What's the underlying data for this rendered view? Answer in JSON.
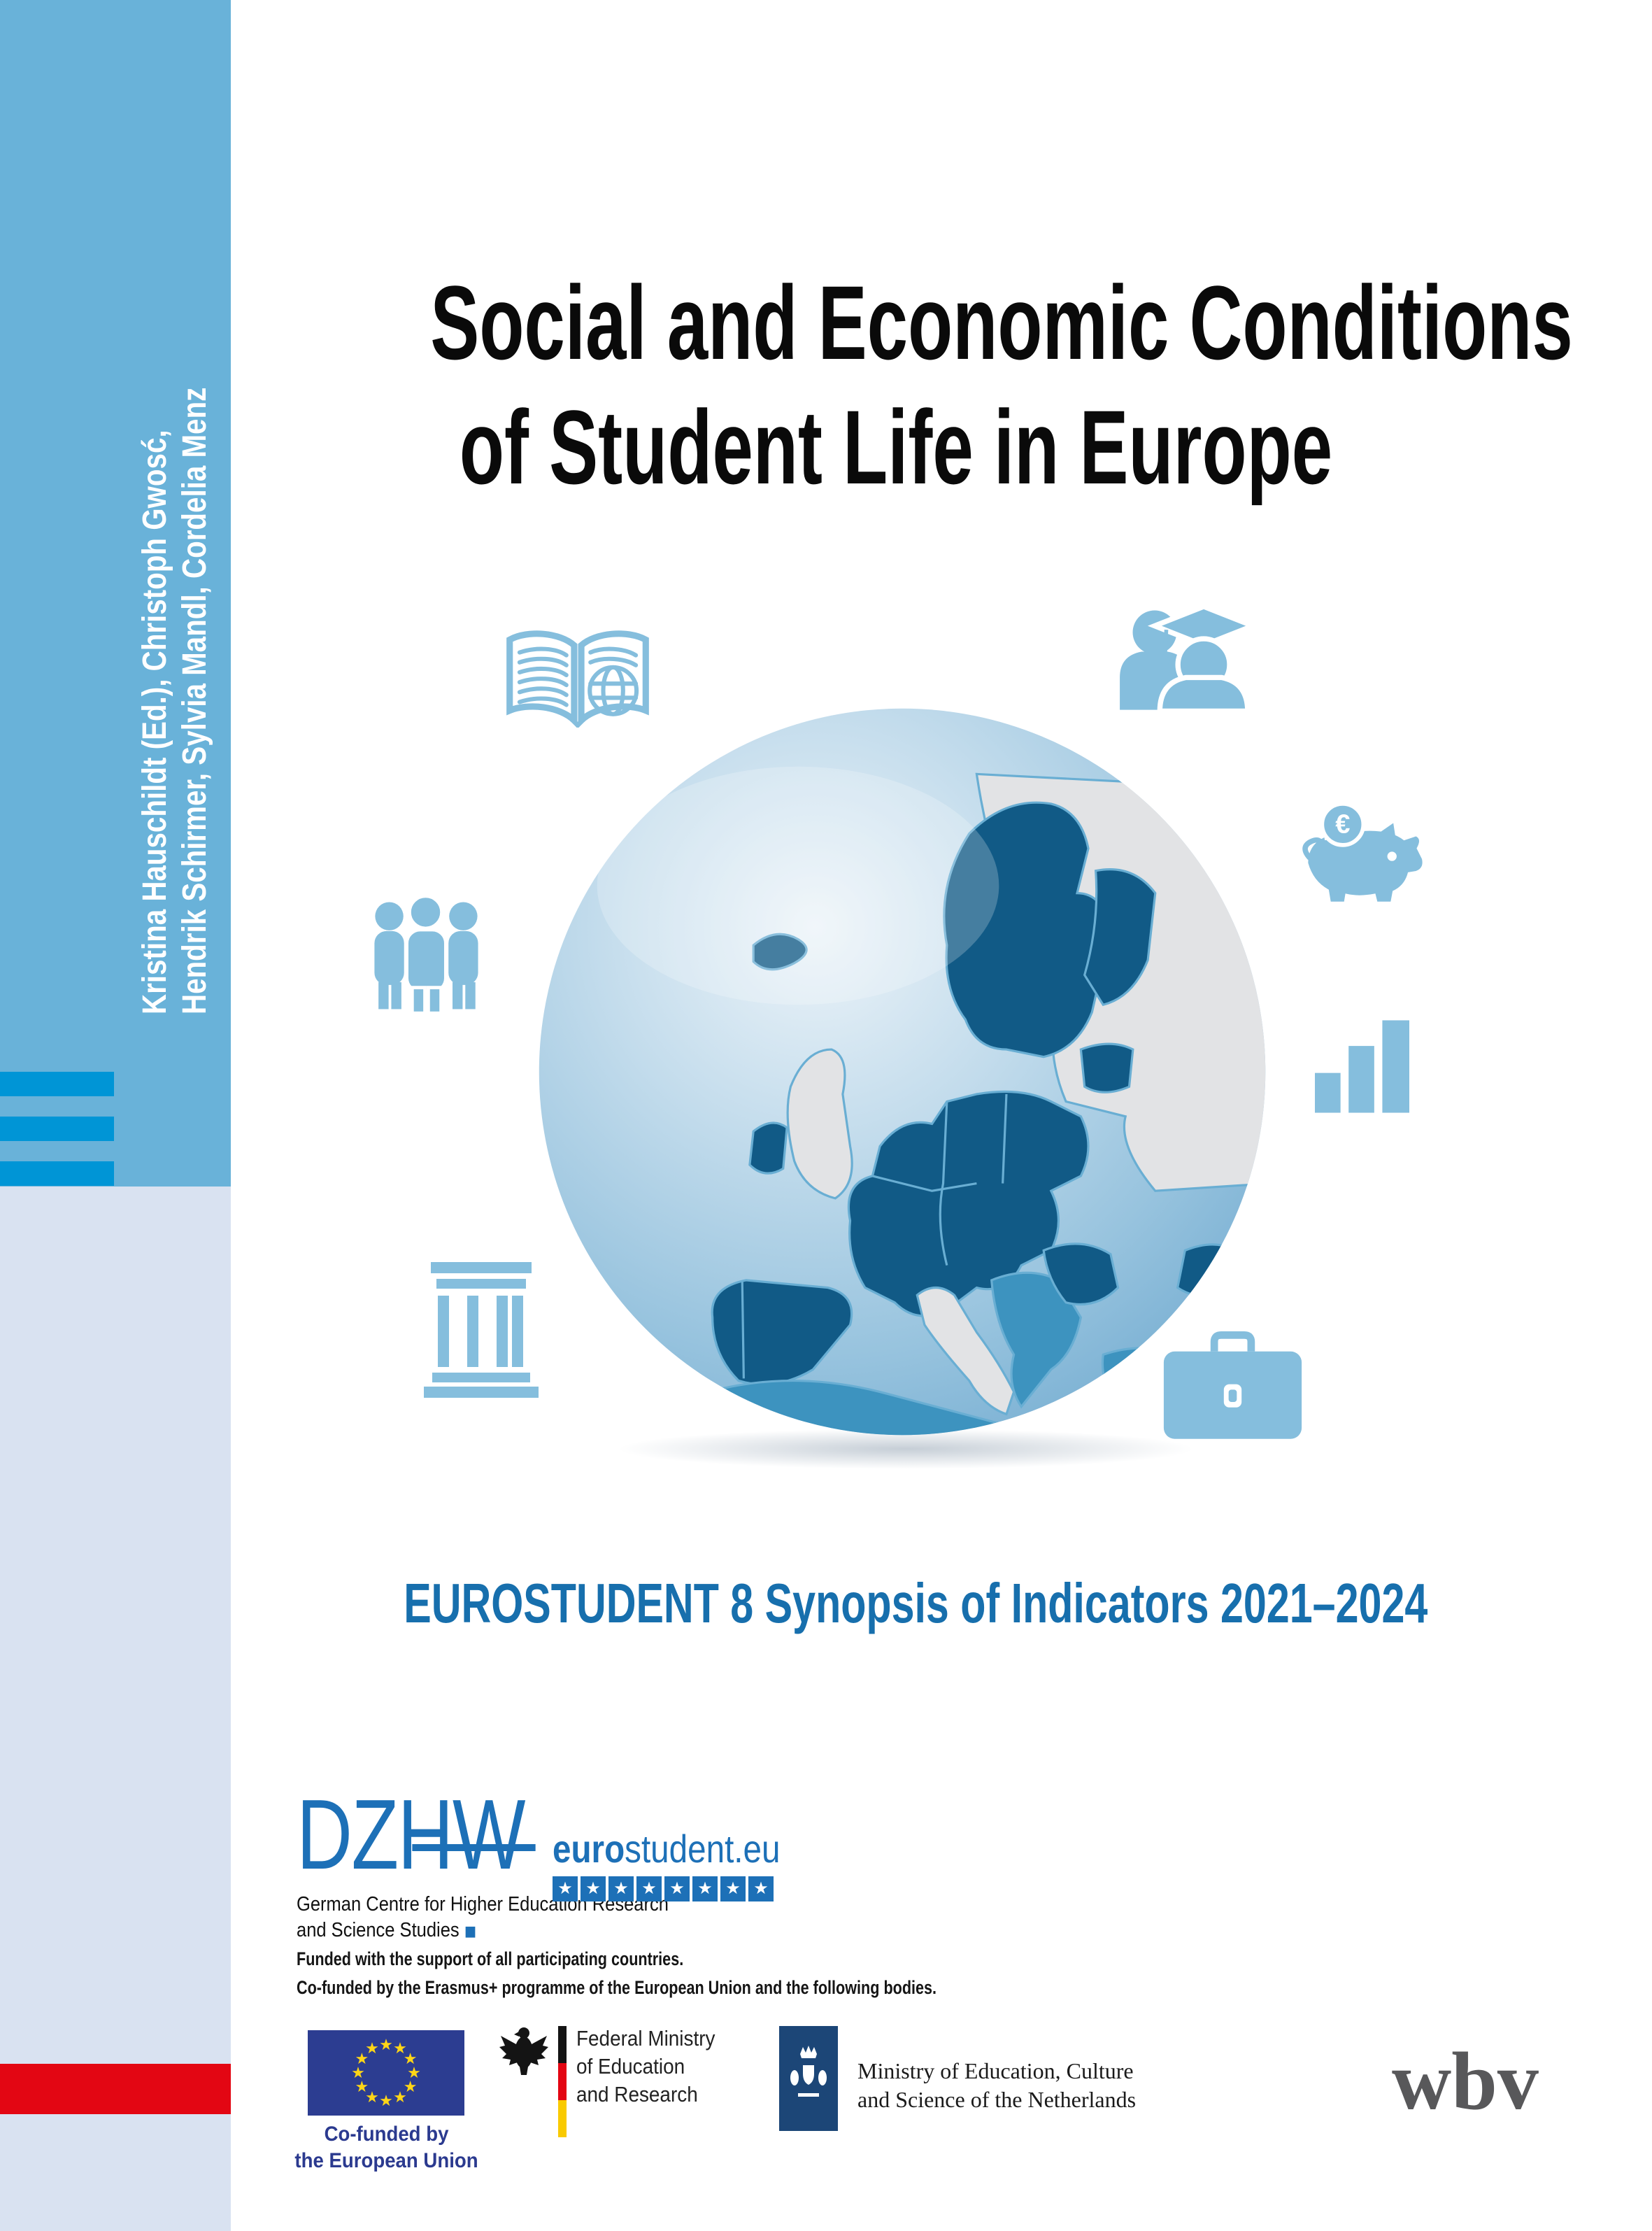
{
  "cover": {
    "authors": {
      "line1": "Kristina Hauschildt (Ed.), Christoph Gwosć,",
      "line2": "Hendrik Schirmer, Sylvia Mandl, Cordelia Menz"
    },
    "title": {
      "line1": "Social and Economic Conditions",
      "line2": "of Student Life in Europe"
    },
    "subtitle": "EUROSTUDENT 8 Synopsis of Indicators 2021–2024"
  },
  "icons": {
    "piggy_euro_symbol": "€",
    "names": [
      "open-book-icon",
      "students-icon",
      "piggy-bank-icon",
      "people-group-icon",
      "bar-chart-icon",
      "university-icon",
      "briefcase-icon",
      "globe-europe-graphic"
    ]
  },
  "logos": {
    "dzhw": {
      "wordmark": "DZHW",
      "tagline_line1": "German Centre for Higher Education Research",
      "tagline_line2": "and Science Studies",
      "tagline_square": "◼"
    },
    "eurostudent": {
      "wordmark_bold": "euro",
      "wordmark_rest": "student.eu",
      "star_count": 8
    },
    "wbv": {
      "wordmark": "wbv"
    }
  },
  "funding": {
    "line1": "Funded with the support of all participating countries.",
    "line2": "Co-funded by the Erasmus+ programme of the European Union and the following bodies.",
    "eu_flag": {
      "star_count": 12,
      "label_line1": "Co-funded by",
      "label_line2": "the European Union"
    },
    "germany": {
      "line1": "Federal Ministry",
      "line2": "of Education",
      "line3": "and Research"
    },
    "netherlands": {
      "line1": "Ministry of Education, Culture",
      "line2": "and Science of the Netherlands"
    }
  },
  "colors": {
    "sidebar_blue": "#69b2d9",
    "stripe_blue": "#0095d6",
    "sidebar_lavender": "#d9e2f1",
    "accent_red": "#e30613",
    "icon_blue": "#85bedd",
    "subtitle_blue": "#176fad",
    "logo_blue": "#1d70b7",
    "eu_flag_blue": "#2c3d91",
    "eu_star_gold": "#ffd617",
    "nl_navy": "#1c4677",
    "wbv_gray": "#58585a",
    "map_dark": "#115a86",
    "map_medium": "#3d93bf",
    "map_grey": "#e2e3e5"
  }
}
